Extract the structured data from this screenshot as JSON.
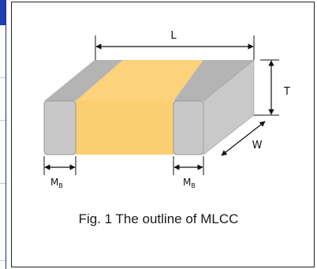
{
  "figure": {
    "caption": "Fig. 1 The outline of MLCC",
    "labels": {
      "length": "L",
      "thickness": "T",
      "width": "W",
      "termination_left": "M",
      "termination_right": "M",
      "termination_sub": "B"
    }
  },
  "colors": {
    "body": "#fbcf71",
    "body_top": "#fcd27a",
    "body_right": "#d2d2d2",
    "terminal_front": "#c8c8c8",
    "terminal_top": "#b4b4b4",
    "terminal_right": "#c9c9c9",
    "line": "#111111",
    "accent_blue": "#1c3fb6"
  }
}
